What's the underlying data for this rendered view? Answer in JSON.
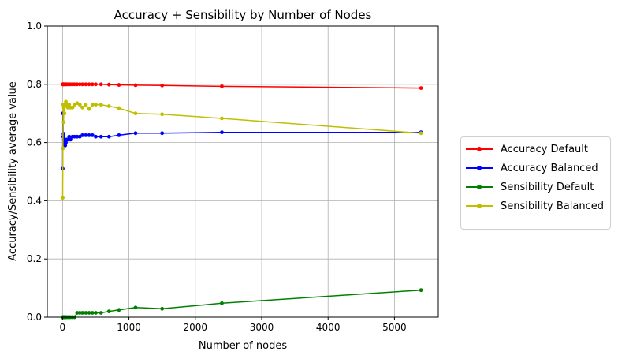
{
  "chart_data": {
    "type": "line",
    "title": "Accuracy + Sensibility by Number of Nodes",
    "xlabel": "Number of nodes",
    "ylabel": "Accuracy/Sensibility average value",
    "xlim": [
      -230,
      5660
    ],
    "ylim": [
      0,
      1
    ],
    "xticks": [
      "0",
      "1000",
      "2000",
      "3000",
      "4000",
      "5000"
    ],
    "yticks": [
      "0.0",
      "0.2",
      "0.4",
      "0.6",
      "0.8",
      "1.0"
    ],
    "grid": true,
    "legend_position": "right",
    "series": [
      {
        "name": "Accuracy Default",
        "color": "#ff0000",
        "x": [
          2,
          5,
          10,
          15,
          20,
          30,
          40,
          50,
          60,
          80,
          100,
          120,
          150,
          180,
          220,
          260,
          300,
          350,
          400,
          450,
          500,
          580,
          700,
          850,
          1100,
          1500,
          2400,
          5400
        ],
        "y": [
          0.8,
          0.8,
          0.8,
          0.8,
          0.8,
          0.8,
          0.8,
          0.8,
          0.8,
          0.8,
          0.8,
          0.8,
          0.8,
          0.8,
          0.8,
          0.8,
          0.8,
          0.8,
          0.8,
          0.8,
          0.8,
          0.8,
          0.799,
          0.798,
          0.797,
          0.796,
          0.793,
          0.787
        ]
      },
      {
        "name": "Accuracy Balanced",
        "color": "#0000ff",
        "x": [
          2,
          5,
          10,
          15,
          20,
          30,
          40,
          50,
          60,
          80,
          100,
          120,
          150,
          180,
          220,
          260,
          300,
          350,
          400,
          450,
          500,
          580,
          700,
          850,
          1100,
          1500,
          2400,
          5400
        ],
        "y": [
          0.51,
          0.7,
          0.62,
          0.63,
          0.61,
          0.6,
          0.59,
          0.6,
          0.61,
          0.61,
          0.62,
          0.61,
          0.62,
          0.62,
          0.62,
          0.62,
          0.625,
          0.625,
          0.625,
          0.625,
          0.62,
          0.62,
          0.62,
          0.625,
          0.632,
          0.632,
          0.635,
          0.635
        ]
      },
      {
        "name": "Sensibility Default",
        "color": "#008000",
        "x": [
          2,
          5,
          10,
          15,
          20,
          30,
          40,
          50,
          60,
          80,
          100,
          120,
          150,
          180,
          220,
          260,
          300,
          350,
          400,
          450,
          500,
          580,
          700,
          850,
          1100,
          1500,
          2400,
          5400
        ],
        "y": [
          0.0,
          0.0,
          0.0,
          0.0,
          0.0,
          0.0,
          0.0,
          0.0,
          0.0,
          0.0,
          0.0,
          0.0,
          0.0,
          0.0,
          0.015,
          0.015,
          0.015,
          0.015,
          0.015,
          0.015,
          0.015,
          0.015,
          0.02,
          0.025,
          0.033,
          0.029,
          0.048,
          0.093
        ]
      },
      {
        "name": "Sensibility Balanced",
        "color": "#bfbf00",
        "x": [
          2,
          5,
          10,
          15,
          20,
          30,
          40,
          50,
          60,
          80,
          100,
          120,
          150,
          180,
          220,
          260,
          300,
          350,
          400,
          450,
          500,
          580,
          700,
          850,
          1100,
          1500,
          2400,
          5400
        ],
        "y": [
          0.41,
          0.58,
          0.73,
          0.67,
          0.72,
          0.7,
          0.73,
          0.74,
          0.73,
          0.72,
          0.73,
          0.72,
          0.72,
          0.73,
          0.735,
          0.73,
          0.72,
          0.73,
          0.715,
          0.73,
          0.73,
          0.73,
          0.725,
          0.718,
          0.7,
          0.697,
          0.683,
          0.632
        ]
      }
    ]
  }
}
